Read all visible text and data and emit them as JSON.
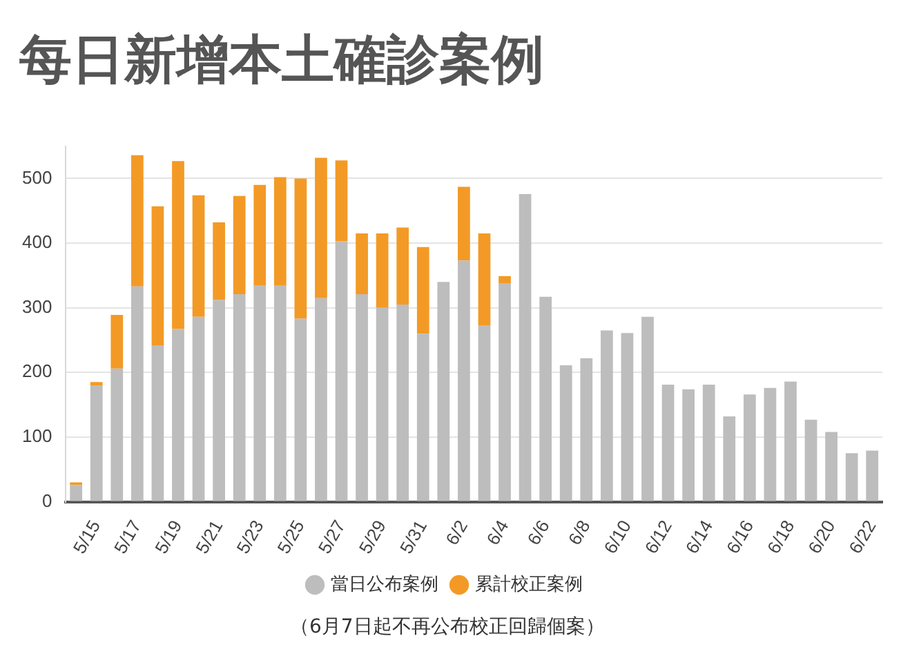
{
  "chart_data": {
    "type": "bar",
    "title": "每日新增本土確診案例",
    "stacked": true,
    "categories": [
      null,
      "5/15",
      null,
      "5/17",
      null,
      "5/19",
      null,
      "5/21",
      null,
      "5/23",
      null,
      "5/25",
      null,
      "5/27",
      null,
      "5/29",
      null,
      "5/31",
      null,
      "6/2",
      null,
      "6/4",
      null,
      "6/6",
      null,
      "6/8",
      null,
      "6/10",
      null,
      "6/12",
      null,
      "6/14",
      null,
      "6/16",
      null,
      "6/18",
      null,
      "6/20",
      null,
      "6/22"
    ],
    "series": [
      {
        "name": "當日公布案例",
        "color": "#bdbdbd",
        "values": [
          26,
          180,
          206,
          333,
          242,
          267,
          286,
          312,
          321,
          334,
          334,
          283,
          315,
          403,
          321,
          300,
          305,
          260,
          340,
          373,
          273,
          338,
          476,
          317,
          211,
          222,
          265,
          261,
          286,
          181,
          174,
          181,
          132,
          166,
          176,
          186,
          127,
          108,
          75,
          79
        ]
      },
      {
        "name": "累計校正案例",
        "color": "#f39a26",
        "values": [
          4,
          5,
          83,
          203,
          215,
          260,
          188,
          120,
          152,
          156,
          168,
          217,
          217,
          125,
          94,
          115,
          119,
          134,
          0,
          114,
          142,
          11,
          0,
          0,
          0,
          0,
          0,
          0,
          0,
          0,
          0,
          0,
          0,
          0,
          0,
          0,
          0,
          0,
          0,
          0
        ]
      }
    ],
    "ylim": [
      0,
      550
    ],
    "yticks": [
      0,
      100,
      200,
      300,
      400,
      500
    ],
    "grid": "y",
    "legend": "bottom",
    "annotations": [
      "（6月7日起不再公布校正回歸個案）"
    ]
  }
}
